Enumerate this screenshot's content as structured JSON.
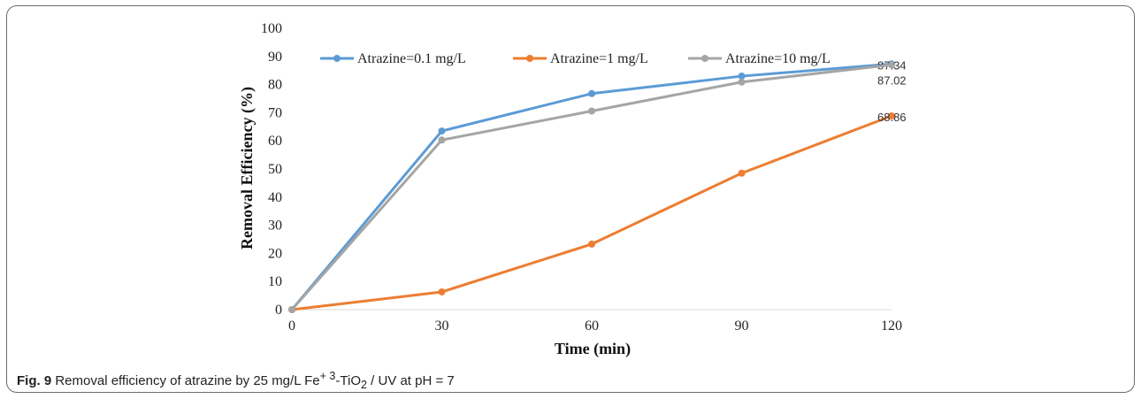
{
  "chart_data": {
    "type": "line",
    "x": [
      0,
      30,
      60,
      90,
      120
    ],
    "xlabel": "Time (min)",
    "ylabel": "Removal Efficiency (%)",
    "xticks": [
      "0",
      "30",
      "60",
      "90",
      "120"
    ],
    "yticks": [
      "0",
      "10",
      "20",
      "30",
      "40",
      "50",
      "60",
      "70",
      "80",
      "90",
      "100"
    ],
    "ylim": [
      0,
      100
    ],
    "grid": false,
    "legend_position": "top",
    "series": [
      {
        "name": "Atrazine=0.1 mg/L",
        "color": "#5B9BD5",
        "values": [
          0,
          63.5,
          76.8,
          83.0,
          87.34
        ],
        "end_label": "87.34"
      },
      {
        "name": "Atrazine=1 mg/L",
        "color": "#ED7D31",
        "values": [
          0,
          6.3,
          23.3,
          48.5,
          68.86
        ],
        "end_label": "68.86"
      },
      {
        "name": "Atrazine=10 mg/L",
        "color": "#A5A5A5",
        "values": [
          0,
          60.3,
          70.6,
          80.9,
          87.02
        ],
        "end_label": "87.02"
      }
    ]
  },
  "caption": {
    "label": "Fig. 9",
    "text_before_sup": " Removal efficiency of atrazine by 25 mg/L Fe",
    "sup": "+ 3",
    "text_between": "-TiO",
    "sub": "2",
    "text_after": " / UV at pH = 7"
  }
}
